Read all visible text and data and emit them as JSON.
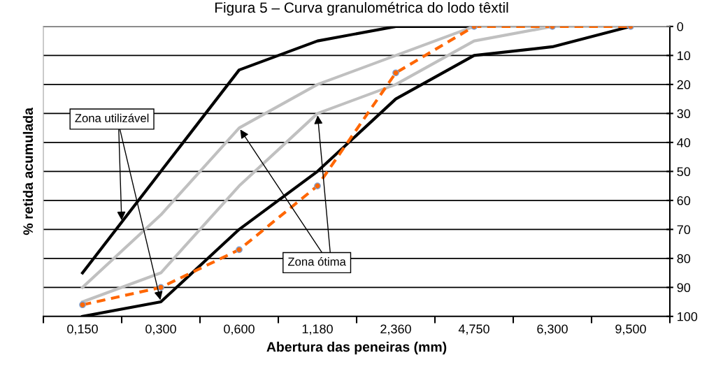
{
  "chart_data": {
    "type": "line",
    "title": "Figura 5 – Curva granulométrica do lodo têxtil",
    "xlabel": "Abertura das peneiras (mm)",
    "ylabel": "% retida acumulada",
    "categories": [
      "0,150",
      "0,300",
      "0,600",
      "1,180",
      "2,360",
      "4,750",
      "6,300",
      "9,500"
    ],
    "series": [
      {
        "color": "#000000",
        "values": [
          85,
          50,
          15,
          5,
          0,
          0,
          0,
          0
        ],
        "line_style": "solid",
        "marker": "none"
      },
      {
        "color": "#000000",
        "values": [
          100,
          95,
          70,
          50,
          25,
          10,
          7,
          0
        ],
        "line_style": "solid",
        "marker": "none"
      },
      {
        "color": "#c0c0c0",
        "values": [
          90,
          65,
          35,
          20,
          10,
          0,
          0,
          0
        ],
        "line_style": "solid",
        "marker": "none"
      },
      {
        "color": "#c0c0c0",
        "values": [
          95,
          85,
          55,
          30,
          20,
          5,
          0,
          0
        ],
        "line_style": "solid",
        "marker": "none"
      },
      {
        "color": "#ff6600",
        "values": [
          96,
          90,
          77,
          55,
          16,
          0,
          0,
          0
        ],
        "line_style": "dashed",
        "marker": "circle"
      }
    ],
    "ylim": [
      100,
      0
    ],
    "yticks": [
      0,
      10,
      20,
      30,
      40,
      50,
      60,
      70,
      80,
      90,
      100
    ],
    "grid": "y",
    "legend": false,
    "annotations": [
      {
        "text": "Zona utilizável",
        "x": "0,300",
        "y": 95
      },
      {
        "text": "Zona ótima",
        "x": "0,600",
        "y": 35
      }
    ]
  }
}
